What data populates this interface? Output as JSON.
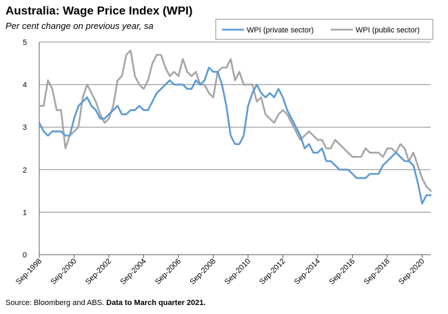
{
  "chart_data": {
    "type": "line",
    "title": "Australia: Wage Price Index (WPI)",
    "subtitle": "Per cent change on previous year, sa",
    "ylim": [
      0,
      5
    ],
    "yticks": [
      0,
      1,
      2,
      3,
      4,
      5
    ],
    "xtick_labels": [
      "Sep-1998",
      "Sep-2000",
      "Sep-2002",
      "Sep-2004",
      "Sep-2006",
      "Sep-2008",
      "Sep-2010",
      "Sep-2012",
      "Sep-2014",
      "Sep-2016",
      "Sep-2018",
      "Sep-2020"
    ],
    "x_start": "Sep-1998",
    "x_end": "Mar-2021",
    "frequency": "quarterly",
    "grid": "horizontal",
    "legend_position": "top-right",
    "series": [
      {
        "name": "WPI (private sector)",
        "color": "#5b9bd5",
        "values": [
          3.1,
          2.9,
          2.8,
          2.9,
          2.9,
          2.9,
          2.8,
          2.8,
          3.2,
          3.5,
          3.6,
          3.7,
          3.5,
          3.4,
          3.2,
          3.2,
          3.3,
          3.4,
          3.5,
          3.3,
          3.3,
          3.4,
          3.4,
          3.5,
          3.4,
          3.4,
          3.6,
          3.8,
          3.9,
          4.0,
          4.1,
          4.0,
          4.0,
          4.0,
          3.9,
          3.9,
          4.1,
          4.0,
          4.1,
          4.4,
          4.3,
          4.3,
          4.0,
          3.5,
          2.8,
          2.6,
          2.6,
          2.8,
          3.5,
          3.8,
          4.0,
          3.8,
          3.7,
          3.8,
          3.7,
          3.9,
          3.7,
          3.4,
          3.2,
          3.0,
          2.8,
          2.5,
          2.6,
          2.4,
          2.4,
          2.5,
          2.2,
          2.2,
          2.1,
          2.0,
          2.0,
          2.0,
          1.9,
          1.8,
          1.8,
          1.8,
          1.9,
          1.9,
          1.9,
          2.1,
          2.2,
          2.3,
          2.4,
          2.3,
          2.2,
          2.2,
          2.1,
          1.7,
          1.2,
          1.4,
          1.4
        ]
      },
      {
        "name": "WPI (public sector)",
        "color": "#a6a6a6",
        "values": [
          3.5,
          3.5,
          4.1,
          3.9,
          3.4,
          3.4,
          2.5,
          2.8,
          2.9,
          3.0,
          3.7,
          4.0,
          3.8,
          3.6,
          3.3,
          3.1,
          3.2,
          3.5,
          4.1,
          4.2,
          4.7,
          4.8,
          4.2,
          4.0,
          3.9,
          4.1,
          4.5,
          4.7,
          4.7,
          4.4,
          4.2,
          4.3,
          4.2,
          4.6,
          4.3,
          4.2,
          4.3,
          4.0,
          4.0,
          3.8,
          3.7,
          4.3,
          4.4,
          4.4,
          4.6,
          4.1,
          4.3,
          4.0,
          4.0,
          4.0,
          3.6,
          3.7,
          3.3,
          3.2,
          3.1,
          3.3,
          3.4,
          3.3,
          3.1,
          2.9,
          2.7,
          2.8,
          2.9,
          2.8,
          2.7,
          2.7,
          2.5,
          2.5,
          2.7,
          2.6,
          2.5,
          2.4,
          2.3,
          2.3,
          2.3,
          2.5,
          2.4,
          2.4,
          2.4,
          2.3,
          2.5,
          2.5,
          2.4,
          2.6,
          2.5,
          2.2,
          2.4,
          2.1,
          1.8,
          1.6,
          1.5
        ]
      }
    ]
  },
  "source": {
    "prefix": "Source: Bloomberg and ABS.",
    "note": "Data to March quarter 2021."
  }
}
